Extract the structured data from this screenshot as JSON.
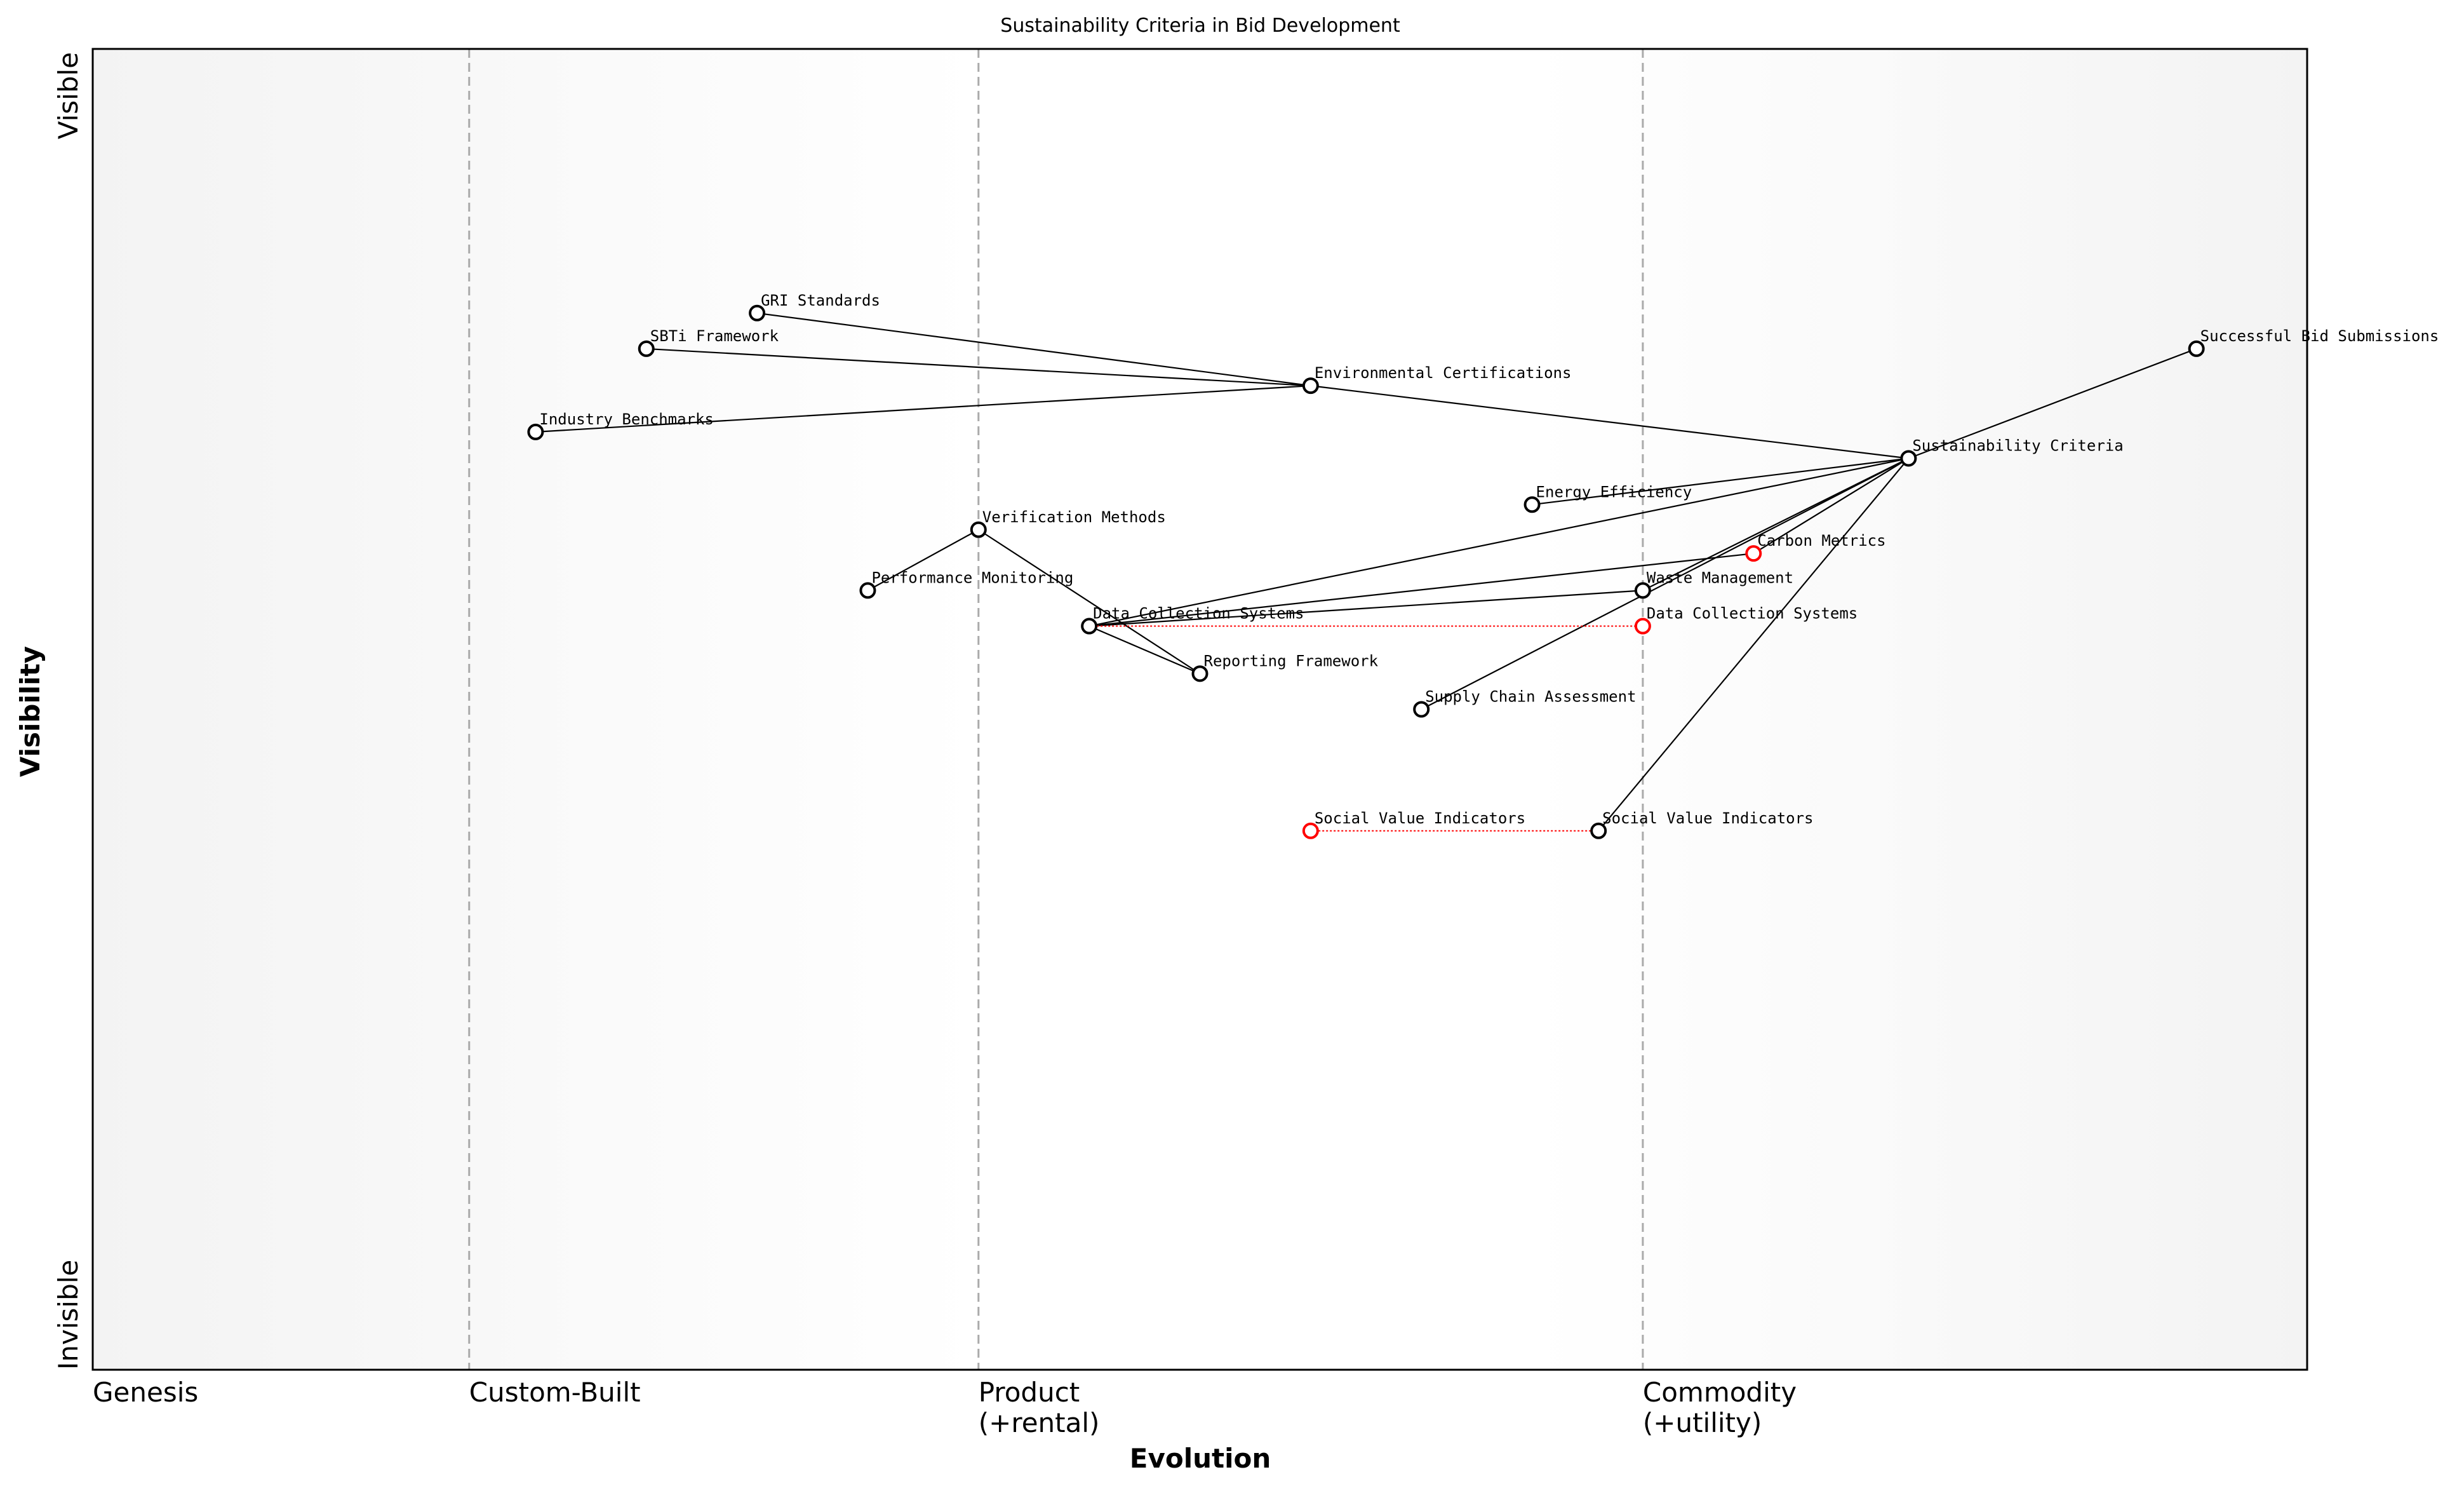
{
  "title": "Sustainability Criteria in Bid Development",
  "x_axis": {
    "title": "Evolution",
    "stages": [
      {
        "value": 0,
        "name": "Genesis"
      },
      {
        "value": 0.17,
        "name": "Custom-Built"
      },
      {
        "value": 0.4,
        "name": "Product",
        "note": "(+rental)"
      },
      {
        "value": 0.7,
        "name": "Commodity",
        "note": "(+utility)"
      }
    ]
  },
  "y_axis": {
    "title": "Visibility",
    "top": "Visible",
    "bottom": "Invisible"
  },
  "nodes": [
    {
      "label": "Successful Bid Submissions",
      "evolution": 0.95,
      "visibility": 0.773,
      "color": "black"
    },
    {
      "label": "Sustainability Criteria",
      "evolution": 0.82,
      "visibility": 0.69,
      "color": "black"
    },
    {
      "label": "Environmental Certifications",
      "evolution": 0.55,
      "visibility": 0.745,
      "color": "black"
    },
    {
      "label": "GRI Standards",
      "evolution": 0.3,
      "visibility": 0.8,
      "color": "black"
    },
    {
      "label": "SBTi Framework",
      "evolution": 0.25,
      "visibility": 0.773,
      "color": "black"
    },
    {
      "label": "Industry Benchmarks",
      "evolution": 0.2,
      "visibility": 0.71,
      "color": "black"
    },
    {
      "label": "Energy Efficiency",
      "evolution": 0.65,
      "visibility": 0.655,
      "color": "black"
    },
    {
      "label": "Carbon Metrics",
      "evolution": 0.75,
      "visibility": 0.618,
      "color": "red"
    },
    {
      "label": "Waste Management",
      "evolution": 0.7,
      "visibility": 0.59,
      "color": "black"
    },
    {
      "label": "Data Collection Systems",
      "evolution": 0.45,
      "visibility": 0.563,
      "color": "black"
    },
    {
      "label": "Data Collection Systems",
      "evolution": 0.7,
      "visibility": 0.563,
      "color": "red"
    },
    {
      "label": "Verification Methods",
      "evolution": 0.4,
      "visibility": 0.636,
      "color": "black"
    },
    {
      "label": "Performance Monitoring",
      "evolution": 0.35,
      "visibility": 0.59,
      "color": "black"
    },
    {
      "label": "Reporting Framework",
      "evolution": 0.5,
      "visibility": 0.527,
      "color": "black"
    },
    {
      "label": "Supply Chain Assessment",
      "evolution": 0.6,
      "visibility": 0.5,
      "color": "black"
    },
    {
      "label": "Social Value Indicators",
      "evolution": 0.68,
      "visibility": 0.408,
      "color": "black"
    },
    {
      "label": "Social Value Indicators",
      "evolution": 0.55,
      "visibility": 0.408,
      "color": "red"
    }
  ],
  "links": [
    [
      0,
      1
    ],
    [
      1,
      2
    ],
    [
      2,
      3
    ],
    [
      2,
      4
    ],
    [
      2,
      5
    ],
    [
      1,
      6
    ],
    [
      1,
      7
    ],
    [
      1,
      8
    ],
    [
      1,
      9
    ],
    [
      1,
      14
    ],
    [
      1,
      15
    ],
    [
      9,
      7
    ],
    [
      9,
      8
    ],
    [
      9,
      13
    ],
    [
      11,
      13
    ],
    [
      11,
      12
    ]
  ],
  "evolutions": [
    [
      9,
      10
    ],
    [
      15,
      16
    ]
  ]
}
